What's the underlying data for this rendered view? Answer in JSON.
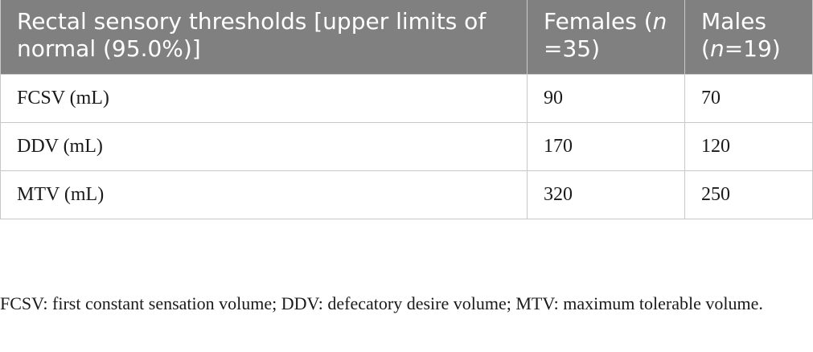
{
  "table": {
    "headers": [
      {
        "main": "Rectal sensory thresholds [upper limits of normal (95.0%)]",
        "italic": "",
        "rest": ""
      },
      {
        "main": "Females (",
        "italic": "n",
        "rest": " =35)"
      },
      {
        "main": "Males (",
        "italic": "n",
        "rest": "=19)"
      }
    ],
    "rows": [
      {
        "label": "FCSV (mL)",
        "females": "90",
        "males": "70"
      },
      {
        "label": "DDV (mL)",
        "females": "170",
        "males": "120"
      },
      {
        "label": "MTV (mL)",
        "females": "320",
        "males": "250"
      }
    ]
  },
  "footnote": "FCSV: first constant sensation volume; DDV: defecatory desire volume; MTV: maximum tolerable volume.",
  "colors": {
    "header_bg": "#808080",
    "header_text": "#ffffff",
    "border": "#c8c8c8"
  }
}
